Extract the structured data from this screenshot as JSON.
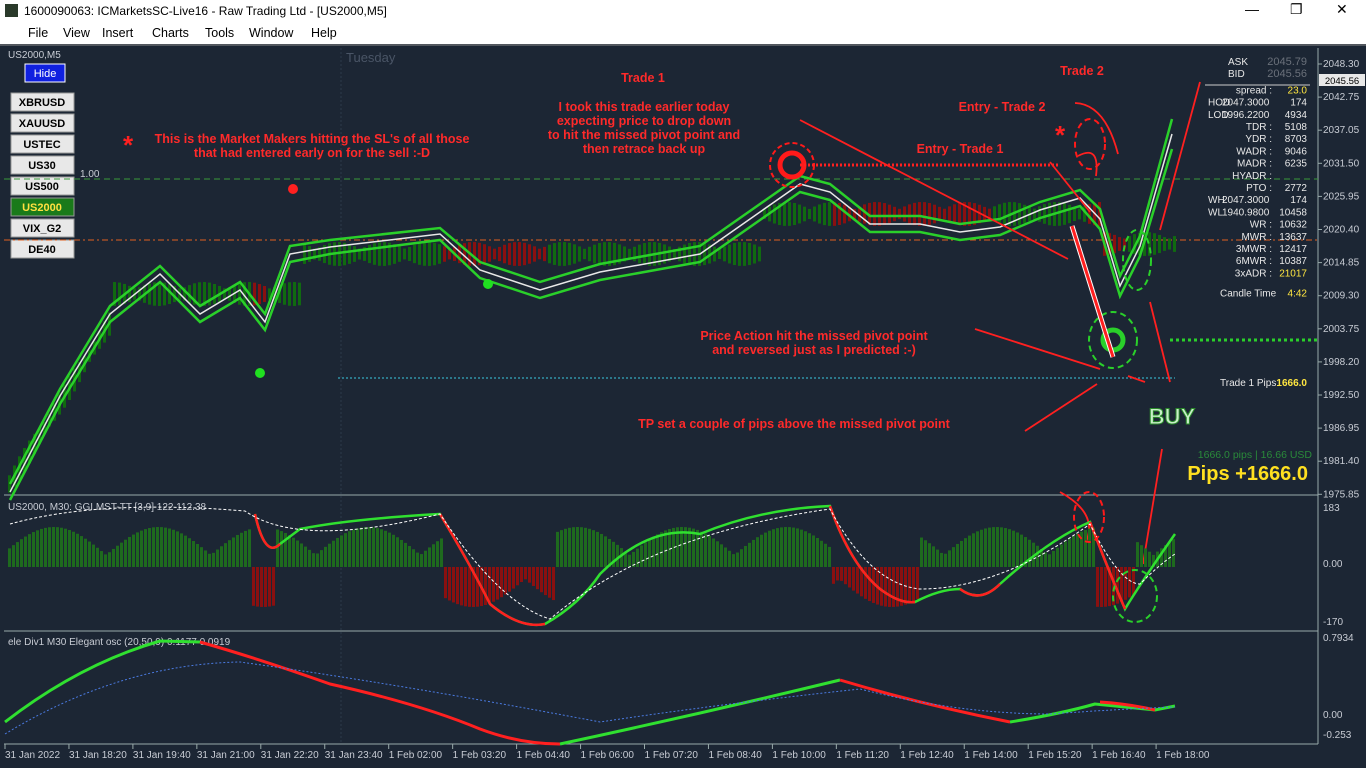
{
  "window": {
    "title": "1600090063: ICMarketsSC-Live16 - Raw Trading Ltd - [US2000,M5]"
  },
  "menu": [
    "File",
    "View",
    "Insert",
    "Charts",
    "Tools",
    "Window",
    "Help"
  ],
  "chart": {
    "symbol": "US2000,M5",
    "day": "Tuesday",
    "hide": "Hide",
    "level": "1.00",
    "symbols": [
      "XBRUSD",
      "XAUUSD",
      "USTEC",
      "US30",
      "US500",
      "US2000",
      "VIX_G2",
      "DE40"
    ],
    "price_axis": [
      "2048.30",
      "2042.75",
      "2037.05",
      "2031.50",
      "2025.95",
      "2020.40",
      "2014.85",
      "2009.30",
      "2003.75",
      "1998.20",
      "1992.50",
      "1986.95",
      "1981.40",
      "1975.85"
    ],
    "current_price": "2045.56",
    "annotations": {
      "trade1": "Trade 1",
      "trade1_text": [
        "I took this trade earlier today",
        "expecting price to drop down",
        "to hit the missed pivot point and",
        "then retrace back up"
      ],
      "trade2": "Trade 2",
      "entry2": "Entry - Trade 2",
      "entry1": "Entry - Trade 1",
      "market_makers": [
        "This is the Market Makers hitting the SL's of all those",
        "that had entered early on for the sell :-D"
      ],
      "price_action": [
        "Price Action hit the missed pivot point",
        "and reversed just as I predicted :-)"
      ],
      "tp": "TP set a couple of pips above the missed pivot point",
      "buy": "BUY"
    },
    "info_panel": [
      [
        "ASK",
        "2045.79"
      ],
      [
        "BID",
        "2045.56"
      ],
      [
        "spread :",
        "23.0"
      ],
      [
        "HOD",
        "2047.3000",
        "174"
      ],
      [
        "LOD",
        "1996.2200",
        "4934"
      ],
      [
        "TDR :",
        "5108"
      ],
      [
        "YDR :",
        "8703"
      ],
      [
        "WADR :",
        "9046"
      ],
      [
        "MADR :",
        "6235"
      ],
      [
        "HYADR :",
        ""
      ],
      [
        "PTO :",
        "2772"
      ],
      [
        "WH",
        "2047.3000",
        "174"
      ],
      [
        "WL",
        "1940.9800",
        "10458"
      ],
      [
        "WR :",
        "10632"
      ],
      [
        "MWR :",
        "13637"
      ],
      [
        "3MWR :",
        "12417"
      ],
      [
        "6MWR :",
        "10387"
      ],
      [
        "3xADR :",
        "21017"
      ],
      [
        "Candle Time",
        "4:42"
      ]
    ],
    "trade_pips_label": "Trade 1 Pips",
    "trade_pips": "1666.0",
    "pips_usd": "1666.0 pips | 16.66 USD",
    "pips_big": "Pips +1666.0"
  },
  "indicator1": {
    "label": "US2000, M30: GGI MST-TT [3,9] 122 112.38",
    "axis": [
      "183",
      "0.00",
      "-170"
    ]
  },
  "indicator2": {
    "label": "ele Div1 M30 Elegant osc (20,50,9) 0.1177 0.0919",
    "axis": [
      "0.7934",
      "0.00",
      "-0.253"
    ]
  },
  "time_axis": [
    "31 Jan 2022",
    "31 Jan 18:20",
    "31 Jan 19:40",
    "31 Jan 21:00",
    "31 Jan 22:20",
    "31 Jan 23:40",
    "1 Feb 02:00",
    "1 Feb 03:20",
    "1 Feb 04:40",
    "1 Feb 06:00",
    "1 Feb 07:20",
    "1 Feb 08:40",
    "1 Feb 10:00",
    "1 Feb 11:20",
    "1 Feb 12:40",
    "1 Feb 14:00",
    "1 Feb 15:20",
    "1 Feb 16:40",
    "1 Feb 18:00"
  ]
}
